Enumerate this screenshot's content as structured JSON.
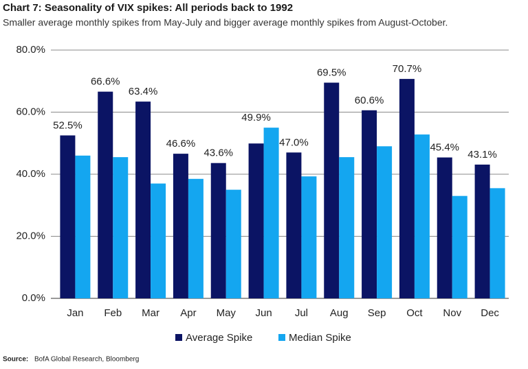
{
  "chart_data": {
    "type": "bar",
    "title": "Chart 7: Seasonality of VIX spikes: All periods back to 1992",
    "subtitle": "Smaller average monthly spikes from May-July and bigger average monthly spikes from August-October.",
    "categories": [
      "Jan",
      "Feb",
      "Mar",
      "Apr",
      "May",
      "Jun",
      "Jul",
      "Aug",
      "Sep",
      "Oct",
      "Nov",
      "Dec"
    ],
    "series": [
      {
        "name": "Average Spike",
        "color": "#0b1464",
        "values": [
          52.5,
          66.6,
          63.4,
          46.6,
          43.6,
          49.9,
          47.0,
          69.5,
          60.6,
          70.7,
          45.4,
          43.1
        ],
        "value_labels": [
          "52.5%",
          "66.6%",
          "63.4%",
          "46.6%",
          "43.6%",
          "49.9%",
          "47.0%",
          "69.5%",
          "60.6%",
          "70.7%",
          "45.4%",
          "43.1%"
        ]
      },
      {
        "name": "Median Spike",
        "color": "#14a6f0",
        "values": [
          46,
          45.5,
          37,
          38.5,
          35,
          55,
          39.3,
          45.5,
          49,
          52.8,
          33,
          35.5
        ]
      }
    ],
    "ylim": [
      0,
      80
    ],
    "yticks": [
      {
        "value": 0,
        "label": "0.0%"
      },
      {
        "value": 20,
        "label": "20.0%"
      },
      {
        "value": 40,
        "label": "40.0%"
      },
      {
        "value": 60,
        "label": "60.0%"
      },
      {
        "value": 80,
        "label": "80.0%"
      }
    ],
    "grid": true,
    "legend": "bottom",
    "source": {
      "label": "Source:",
      "text": "BofA Global Research, Bloomberg"
    }
  }
}
